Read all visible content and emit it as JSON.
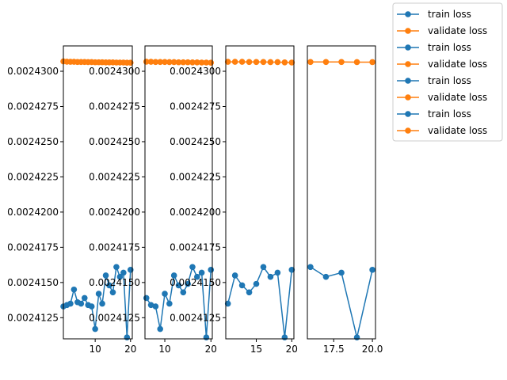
{
  "colors": {
    "train": "#1f77b4",
    "validate": "#ff7f0e",
    "frame": "#000000",
    "legend_border": "#cccccc"
  },
  "legend": {
    "placement": "outside-top-right",
    "entries": [
      "train loss",
      "validate loss",
      "train loss",
      "validate loss",
      "train loss",
      "validate loss",
      "train loss",
      "validate loss"
    ]
  },
  "chart_data": [
    {
      "type": "line",
      "xlim": [
        1.0,
        20.5
      ],
      "ylim": [
        0.002411,
        0.0024318
      ],
      "xticks": [
        10,
        20
      ],
      "xtick_labels": [
        "10",
        "20"
      ],
      "yticks": [
        0.0024125,
        0.002415,
        0.0024175,
        0.00242,
        0.0024225,
        0.002425,
        0.0024275,
        0.00243
      ],
      "ytick_labels": [
        "0.0024125",
        "0.0024150",
        "0.0024175",
        "0.0024200",
        "0.0024225",
        "0.0024250",
        "0.0024275",
        "0.0024300"
      ],
      "series": [
        {
          "name": "train loss",
          "color": "train",
          "x": [
            1,
            2,
            3,
            4,
            5,
            6,
            7,
            8,
            9,
            10,
            11,
            12,
            13,
            14,
            15,
            16,
            17,
            18,
            19,
            20
          ],
          "y": [
            0.0024133,
            0.0024134,
            0.0024135,
            0.0024145,
            0.0024136,
            0.0024135,
            0.0024139,
            0.0024134,
            0.0024133,
            0.0024117,
            0.0024142,
            0.0024135,
            0.0024155,
            0.0024148,
            0.0024143,
            0.0024161,
            0.0024154,
            0.0024157,
            0.0024111,
            0.0024159
          ]
        },
        {
          "name": "validate loss",
          "color": "validate",
          "x": [
            1,
            2,
            3,
            4,
            5,
            6,
            7,
            8,
            9,
            10,
            11,
            12,
            13,
            14,
            15,
            16,
            17,
            18,
            19,
            20
          ],
          "y": [
            0.0024307,
            0.00243068,
            0.00243067,
            0.00243067,
            0.00243066,
            0.00243066,
            0.00243066,
            0.00243065,
            0.00243065,
            0.00243064,
            0.00243064,
            0.00243064,
            0.00243063,
            0.00243063,
            0.00243063,
            0.00243062,
            0.00243062,
            0.00243062,
            0.00243061,
            0.00243061
          ]
        }
      ]
    },
    {
      "type": "line",
      "xlim": [
        5.7,
        20.3
      ],
      "ylim": [
        0.002411,
        0.0024318
      ],
      "xticks": [
        10,
        20
      ],
      "xtick_labels": [
        "10",
        "20"
      ],
      "yticks": [
        0.0024125,
        0.002415,
        0.0024175,
        0.00242,
        0.0024225,
        0.002425,
        0.0024275,
        0.00243
      ],
      "ytick_labels": [
        "0.0024125",
        "0.0024150",
        "0.0024175",
        "0.0024200",
        "0.0024225",
        "0.0024250",
        "0.0024275",
        "0.0024300"
      ],
      "series": [
        {
          "name": "train loss",
          "color": "train",
          "x": [
            6,
            7,
            8,
            9,
            10,
            11,
            12,
            13,
            14,
            15,
            16,
            17,
            18,
            19,
            20
          ],
          "y": [
            0.0024139,
            0.0024134,
            0.0024133,
            0.0024117,
            0.0024142,
            0.0024135,
            0.0024155,
            0.0024148,
            0.0024143,
            0.0024149,
            0.0024161,
            0.0024154,
            0.0024157,
            0.0024111,
            0.0024159
          ]
        },
        {
          "name": "validate loss",
          "color": "validate",
          "x": [
            6,
            7,
            8,
            9,
            10,
            11,
            12,
            13,
            14,
            15,
            16,
            17,
            18,
            19,
            20
          ],
          "y": [
            0.00243068,
            0.00243067,
            0.00243066,
            0.00243066,
            0.00243066,
            0.00243065,
            0.00243065,
            0.00243064,
            0.00243064,
            0.00243064,
            0.00243063,
            0.00243063,
            0.00243062,
            0.00243062,
            0.00243061
          ]
        }
      ]
    },
    {
      "type": "line",
      "xlim": [
        10.7,
        20.3
      ],
      "ylim": [
        0.002411,
        0.0024318
      ],
      "xticks": [
        15,
        20
      ],
      "xtick_labels": [
        "15",
        "20"
      ],
      "yticks": [
        0.0024125,
        0.002415,
        0.0024175,
        0.00242,
        0.0024225,
        0.002425,
        0.0024275,
        0.00243
      ],
      "ytick_labels": [
        "0.0024125",
        "0.0024150",
        "0.0024175",
        "0.0024200",
        "0.0024225",
        "0.0024250",
        "0.0024275",
        "0.0024300"
      ],
      "series": [
        {
          "name": "train loss",
          "color": "train",
          "x": [
            11,
            12,
            13,
            14,
            15,
            16,
            17,
            18,
            19,
            20
          ],
          "y": [
            0.0024135,
            0.0024155,
            0.0024148,
            0.0024143,
            0.0024149,
            0.0024161,
            0.0024154,
            0.0024157,
            0.0024111,
            0.0024159
          ]
        },
        {
          "name": "validate loss",
          "color": "validate",
          "x": [
            11,
            12,
            13,
            14,
            15,
            16,
            17,
            18,
            19,
            20
          ],
          "y": [
            0.00243067,
            0.00243067,
            0.00243067,
            0.00243066,
            0.00243066,
            0.00243066,
            0.00243065,
            0.00243065,
            0.00243063,
            0.00243062
          ]
        }
      ]
    },
    {
      "type": "line",
      "xlim": [
        15.8,
        20.2
      ],
      "ylim": [
        0.002411,
        0.0024318
      ],
      "xticks": [
        17.5,
        20.0
      ],
      "xtick_labels": [
        "17.5",
        "20.0"
      ],
      "yticks": [],
      "ytick_labels": [],
      "series": [
        {
          "name": "train loss",
          "color": "train",
          "x": [
            16,
            17,
            18,
            19,
            20
          ],
          "y": [
            0.0024161,
            0.0024154,
            0.0024157,
            0.0024111,
            0.0024159
          ]
        },
        {
          "name": "validate loss",
          "color": "validate",
          "x": [
            16,
            17,
            18,
            19,
            20
          ],
          "y": [
            0.00243066,
            0.00243066,
            0.00243066,
            0.00243065,
            0.00243065
          ]
        }
      ]
    }
  ]
}
